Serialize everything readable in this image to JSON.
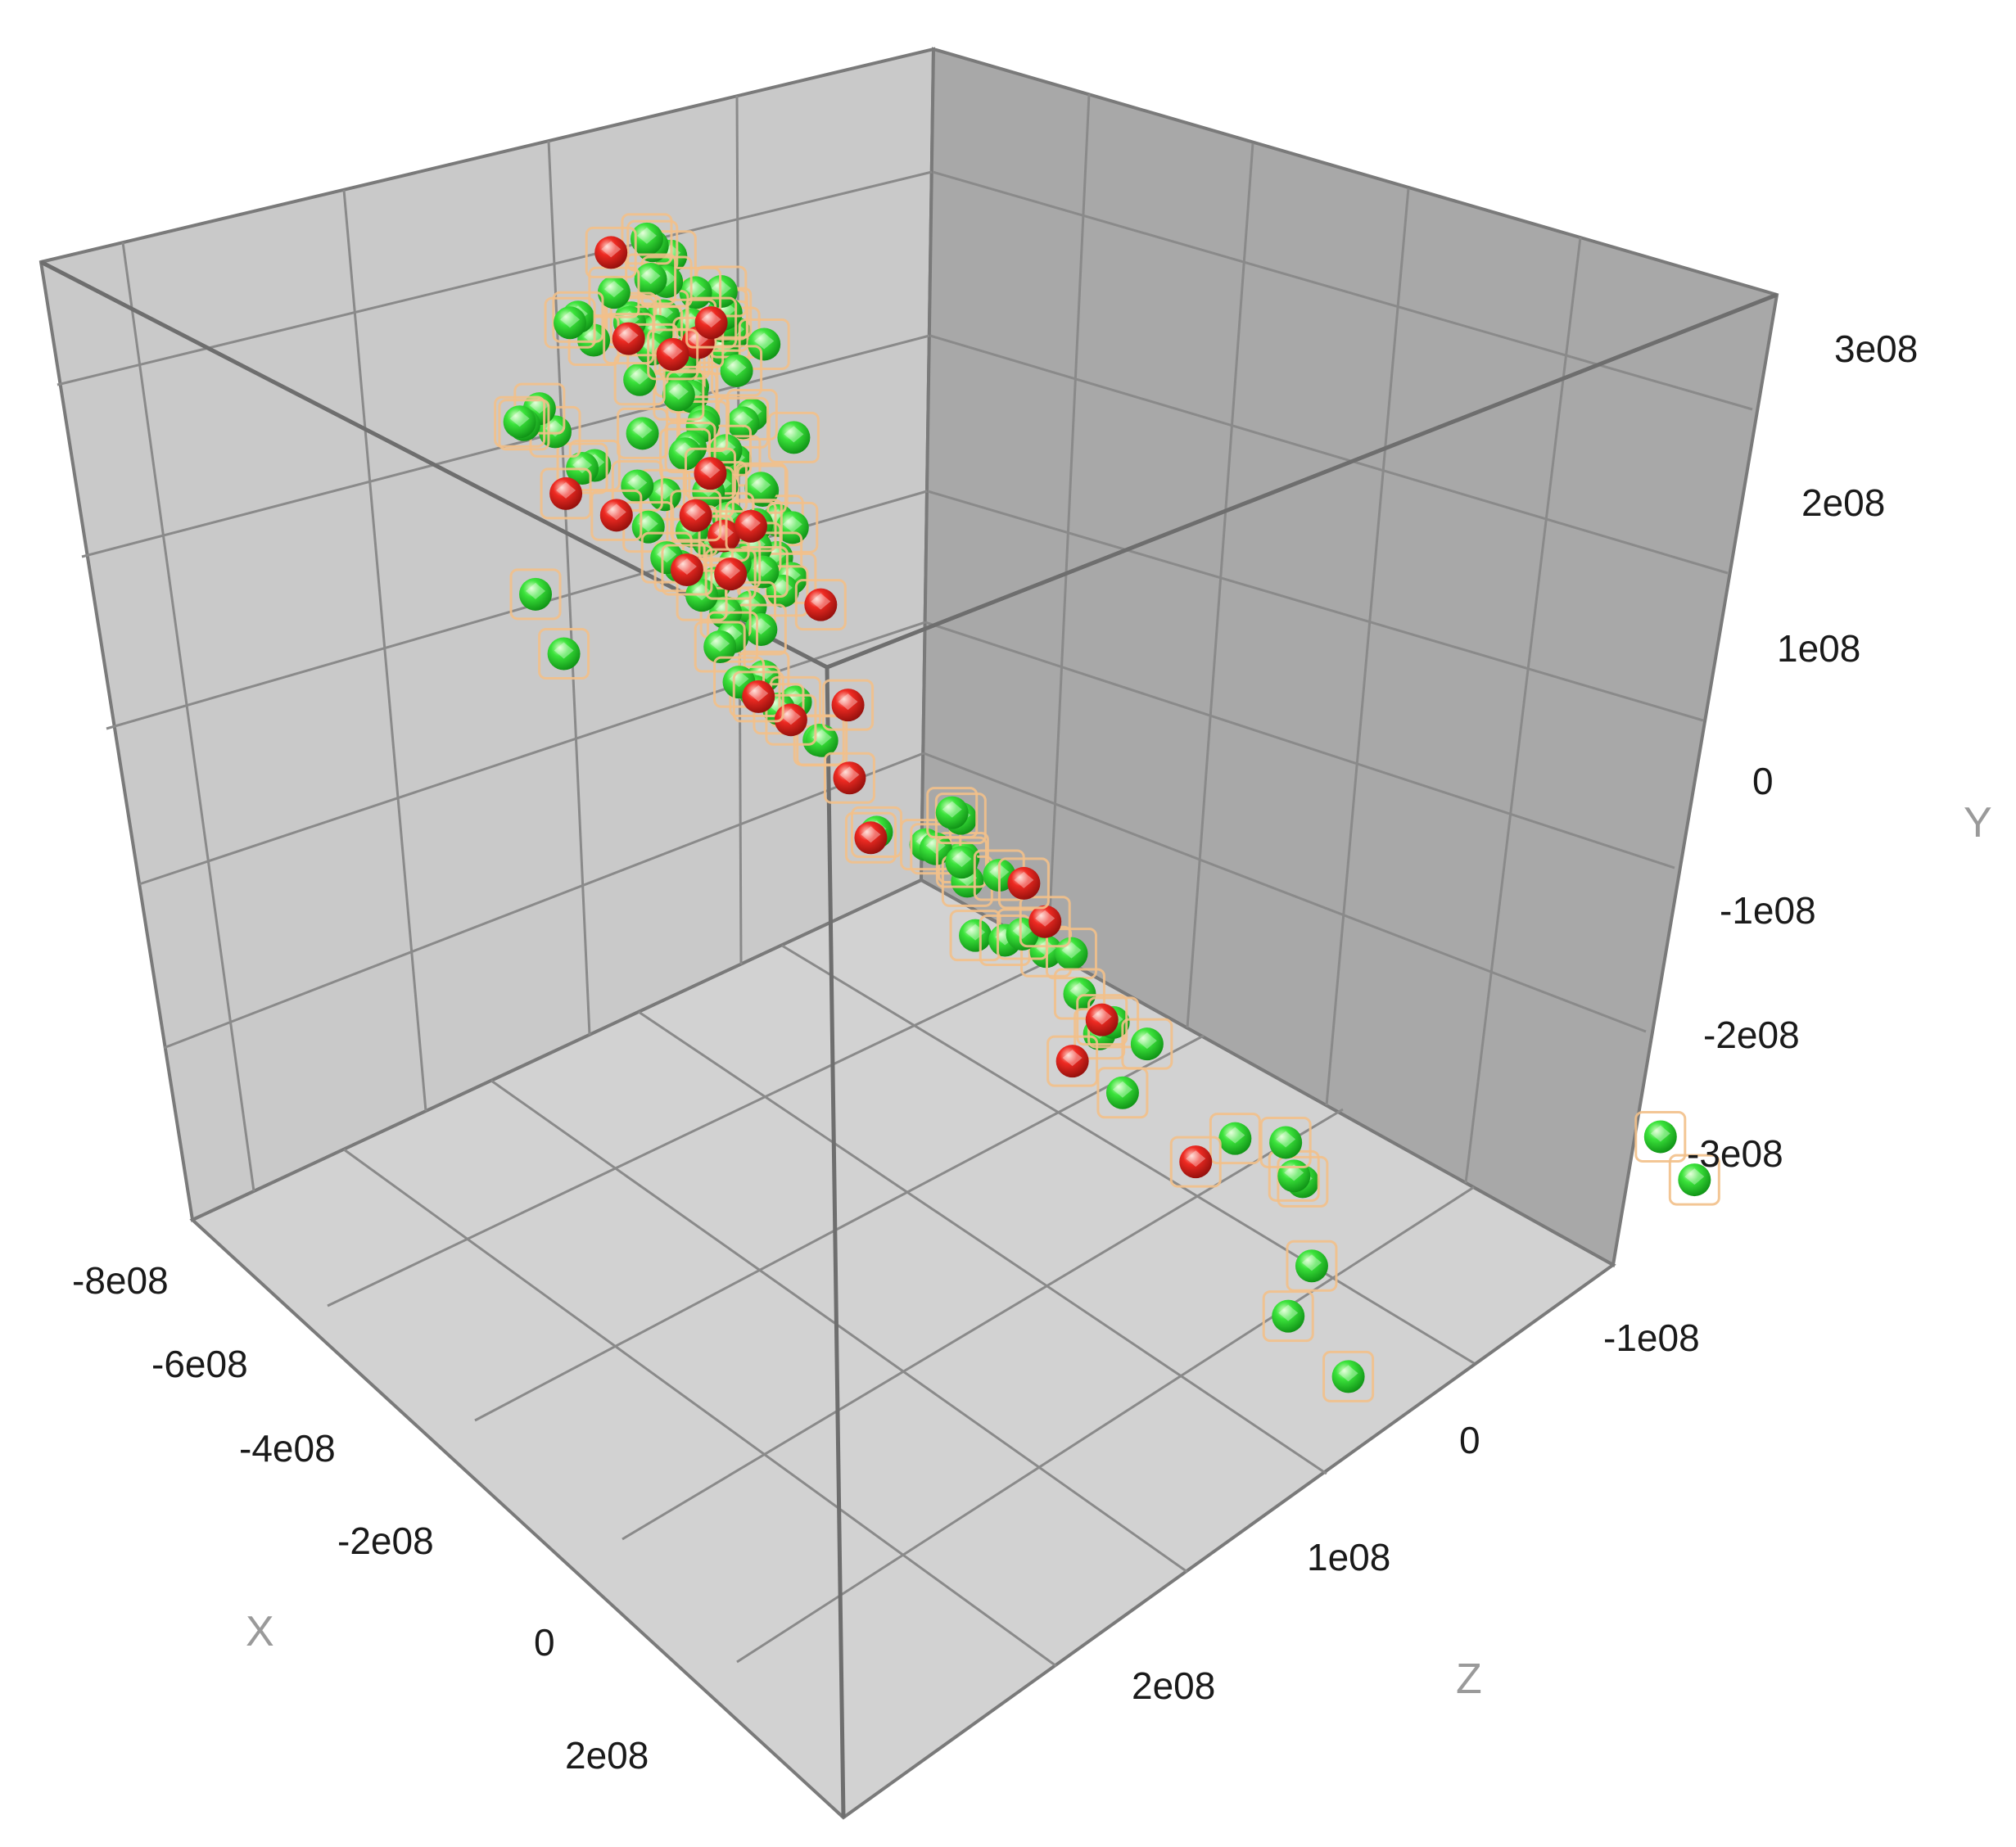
{
  "chart_data": {
    "type": "scatter",
    "projection": "3d",
    "grid": true,
    "legend": "none",
    "axes": {
      "x": {
        "label": "X",
        "ticks": [
          "-8e08",
          "-6e08",
          "-4e08",
          "-2e08",
          "0",
          "2e08"
        ],
        "range": [
          -800000000.0,
          200000000.0
        ]
      },
      "y": {
        "label": "Y",
        "ticks": [
          "3e08",
          "2e08",
          "1e08",
          "0",
          "-1e08",
          "-2e08",
          "-3e08"
        ],
        "range": [
          -300000000.0,
          300000000.0
        ]
      },
      "z": {
        "label": "Z",
        "ticks": [
          "-1e08",
          "0",
          "1e08",
          "2e08"
        ],
        "range": [
          -100000000.0,
          200000000.0
        ]
      }
    },
    "colors": {
      "green": "#22cc22",
      "red": "#dd2222",
      "halo": "#f2c08a",
      "grid": "#8a8a8a",
      "frame": "#7a7a7a"
    },
    "series": [
      {
        "color_key": "green",
        "points": [
          [
            -340000000.0,
            290000000.0,
            -20000000.0
          ],
          [
            -310000000.0,
            290000000.0,
            -25000000.0
          ],
          [
            -310000000.0,
            290000000.0,
            -30000000.0
          ],
          [
            -295000000.0,
            290000000.0,
            -35000000.0
          ],
          [
            -290000000.0,
            290000000.0,
            -35000000.0
          ],
          [
            -285000000.0,
            280000000.0,
            -20000000.0
          ],
          [
            -265000000.0,
            290000000.0,
            -45000000.0
          ],
          [
            -255000000.0,
            290000000.0,
            -70000000.0
          ],
          [
            -255000000.0,
            290000000.0,
            -78000000.0
          ],
          [
            -250000000.0,
            290000000.0,
            -82000000.0
          ],
          [
            -700000000.0,
            200000000.0,
            25000000.0
          ],
          [
            -660000000.0,
            210000000.0,
            0.0
          ],
          [
            -220000000.0,
            255000000.0,
            -70000000.0
          ],
          [
            -210000000.0,
            210000000.0,
            -55000000.0
          ],
          [
            -210000000.0,
            225000000.0,
            -75000000.0
          ],
          [
            -200000000.0,
            215000000.0,
            -90000000.0
          ],
          [
            -180000000.0,
            230000000.0,
            -95000000.0
          ],
          [
            -170000000.0,
            220000000.0,
            -105000000.0
          ],
          [
            -180000000.0,
            190000000.0,
            -110000000.0
          ],
          [
            -190000000.0,
            195000000.0,
            -105000000.0
          ],
          [
            -220000000.0,
            190000000.0,
            -45000000.0
          ],
          [
            -210000000.0,
            185000000.0,
            -30000000.0
          ],
          [
            -200000000.0,
            170000000.0,
            -55000000.0
          ],
          [
            -190000000.0,
            170000000.0,
            -80000000.0
          ],
          [
            -170000000.0,
            180000000.0,
            -90000000.0
          ],
          [
            -160000000.0,
            180000000.0,
            -105000000.0
          ],
          [
            -150000000.0,
            170000000.0,
            -120000000.0
          ],
          [
            -140000000.0,
            180000000.0,
            -130000000.0
          ],
          [
            -150000000.0,
            160000000.0,
            -110000000.0
          ],
          [
            -160000000.0,
            160000000.0,
            -95000000.0
          ],
          [
            -175000000.0,
            155000000.0,
            -85000000.0
          ],
          [
            -190000000.0,
            150000000.0,
            -75000000.0
          ],
          [
            -210000000.0,
            145000000.0,
            -55000000.0
          ],
          [
            -220000000.0,
            140000000.0,
            -40000000.0
          ],
          [
            -230000000.0,
            130000000.0,
            -30000000.0
          ],
          [
            -210000000.0,
            120000000.0,
            -30000000.0
          ],
          [
            -190000000.0,
            125000000.0,
            -50000000.0
          ],
          [
            -175000000.0,
            130000000.0,
            -70000000.0
          ],
          [
            -160000000.0,
            130000000.0,
            -85000000.0
          ],
          [
            -145000000.0,
            135000000.0,
            -100000000.0
          ],
          [
            -135000000.0,
            125000000.0,
            -120000000.0
          ],
          [
            -135000000.0,
            135000000.0,
            -140000000.0
          ],
          [
            -125000000.0,
            140000000.0,
            -150000000.0
          ],
          [
            -120000000.0,
            130000000.0,
            -155000000.0
          ],
          [
            -160000000.0,
            110000000.0,
            -90000000.0
          ],
          [
            -180000000.0,
            105000000.0,
            -70000000.0
          ],
          [
            -195000000.0,
            100000000.0,
            -50000000.0
          ],
          [
            -215000000.0,
            95000000.0,
            -35000000.0
          ],
          [
            -195000000.0,
            75000000.0,
            -35000000.0
          ],
          [
            -180000000.0,
            75000000.0,
            -55000000.0
          ],
          [
            -170000000.0,
            80000000.0,
            -70000000.0
          ],
          [
            -150000000.0,
            80000000.0,
            -85000000.0
          ],
          [
            -135000000.0,
            90000000.0,
            -100000000.0
          ],
          [
            -130000000.0,
            85000000.0,
            -120000000.0
          ],
          [
            -190000000.0,
            60000000.0,
            -40000000.0
          ],
          [
            -170000000.0,
            55000000.0,
            -55000000.0
          ],
          [
            -160000000.0,
            45000000.0,
            -70000000.0
          ],
          [
            -150000000.0,
            45000000.0,
            -85000000.0
          ],
          [
            -140000000.0,
            40000000.0,
            -95000000.0
          ],
          [
            -130000000.0,
            50000000.0,
            -110000000.0
          ],
          [
            -120000000.0,
            40000000.0,
            -125000000.0
          ],
          [
            -115000000.0,
            35000000.0,
            -145000000.0
          ],
          [
            -100000000.0,
            20000000.0,
            -155000000.0
          ],
          [
            -90000000.0,
            30000000.0,
            -170000000.0
          ],
          [
            -80000000.0,
            35000000.0,
            -180000000.0
          ],
          [
            -85000000.0,
            20000000.0,
            -185000000.0
          ],
          [
            -75000000.0,
            15000000.0,
            -190000000.0
          ],
          [
            -120000000.0,
            15000000.0,
            -120000000.0
          ],
          [
            -140000000.0,
            10000000.0,
            -100000000.0
          ],
          [
            -155000000.0,
            20000000.0,
            -80000000.0
          ],
          [
            -170000000.0,
            25000000.0,
            -60000000.0
          ],
          [
            -155000000.0,
            5000000.0,
            -60000000.0
          ],
          [
            -140000000.0,
            -5000000.0,
            -80000000.0
          ],
          [
            -125000000.0,
            -10000000.0,
            -95000000.0
          ],
          [
            -110000000.0,
            -5000000.0,
            -115000000.0
          ],
          [
            -130000000.0,
            -25000000.0,
            -80000000.0
          ],
          [
            -150000000.0,
            -30000000.0,
            -60000000.0
          ],
          [
            -170000000.0,
            -25000000.0,
            -40000000.0
          ],
          [
            -185000000.0,
            -35000000.0,
            -25000000.0
          ],
          [
            -165000000.0,
            -45000000.0,
            -30000000.0
          ],
          [
            -145000000.0,
            -50000000.0,
            -55000000.0
          ],
          [
            -130000000.0,
            -55000000.0,
            -70000000.0
          ],
          [
            -115000000.0,
            -45000000.0,
            -90000000.0
          ],
          [
            -120000000.0,
            -60000000.0,
            -80000000.0
          ],
          [
            -200000000.0,
            -70000000.0,
            5000000.0
          ],
          [
            -180000000.0,
            -70000000.0,
            20000000.0
          ],
          [
            -160000000.0,
            -75000000.0,
            30000000.0
          ],
          [
            -150000000.0,
            -85000000.0,
            15000000.0
          ],
          [
            -170000000.0,
            -85000000.0,
            35000000.0
          ],
          [
            -130000000.0,
            -95000000.0,
            20000000.0
          ],
          [
            -110000000.0,
            -100000000.0,
            30000000.0
          ],
          [
            -100000000.0,
            -80000000.0,
            10000000.0
          ],
          [
            -80000000.0,
            -90000000.0,
            0.0
          ],
          [
            -190000000.0,
            -110000000.0,
            45000000.0
          ],
          [
            -165000000.0,
            -115000000.0,
            50000000.0
          ],
          [
            -140000000.0,
            -120000000.0,
            60000000.0
          ],
          [
            -125000000.0,
            -125000000.0,
            45000000.0
          ],
          [
            -105000000.0,
            -130000000.0,
            60000000.0
          ],
          [
            -125000000.0,
            -145000000.0,
            70000000.0
          ],
          [
            -145000000.0,
            -155000000.0,
            85000000.0
          ],
          [
            -110000000.0,
            -160000000.0,
            80000000.0
          ],
          [
            -95000000.0,
            -170000000.0,
            90000000.0
          ],
          [
            -160000000.0,
            -180000000.0,
            100000000.0
          ],
          [
            -280000000.0,
            -210000000.0,
            210000000.0
          ],
          [
            -260000000.0,
            -240000000.0,
            230000000.0
          ],
          [
            -120000000.0,
            -250000000.0,
            170000000.0
          ],
          [
            -100000000.0,
            -200000000.0,
            130000000.0
          ],
          [
            -70000000.0,
            -220000000.0,
            150000000.0
          ],
          [
            -50000000.0,
            -230000000.0,
            140000000.0
          ],
          [
            -30000000.0,
            -220000000.0,
            130000000.0
          ],
          [
            150000000.0,
            -180000000.0,
            250000000.0
          ],
          [
            70000000.0,
            -120000000.0,
            260000000.0
          ]
        ]
      },
      {
        "color_key": "red",
        "points": [
          [
            -360000000.0,
            295000000.0,
            -25000000.0
          ],
          [
            -230000000.0,
            245000000.0,
            -60000000.0
          ],
          [
            -145000000.0,
            210000000.0,
            -130000000.0
          ],
          [
            -170000000.0,
            175000000.0,
            -95000000.0
          ],
          [
            -135000000.0,
            150000000.0,
            -125000000.0
          ],
          [
            -330000000.0,
            140000000.0,
            20000000.0
          ],
          [
            -180000000.0,
            110000000.0,
            -75000000.0
          ],
          [
            -160000000.0,
            60000000.0,
            -75000000.0
          ],
          [
            -155000000.0,
            75000000.0,
            -65000000.0
          ],
          [
            -135000000.0,
            50000000.0,
            -95000000.0
          ],
          [
            -150000000.0,
            30000000.0,
            -75000000.0
          ],
          [
            -210000000.0,
            15000000.0,
            -5000000.0
          ],
          [
            -130000000.0,
            5000000.0,
            -100000000.0
          ],
          [
            -100000000.0,
            0.0,
            -140000000.0
          ],
          [
            -90000000.0,
            -10000000.0,
            -165000000.0
          ],
          [
            -160000000.0,
            -45000000.0,
            -45000000.0
          ],
          [
            -240000000.0,
            -55000000.0,
            15000000.0
          ],
          [
            -125000000.0,
            -60000000.0,
            -70000000.0
          ],
          [
            -110000000.0,
            -90000000.0,
            -35000000.0
          ],
          [
            -110000000.0,
            -115000000.0,
            50000000.0
          ],
          [
            -230000000.0,
            -140000000.0,
            100000000.0
          ],
          [
            -190000000.0,
            -120000000.0,
            100000000.0
          ],
          [
            -140000000.0,
            -80000000.0,
            50000000.0
          ],
          [
            -170000000.0,
            -195000000.0,
            135000000.0
          ]
        ]
      }
    ]
  }
}
